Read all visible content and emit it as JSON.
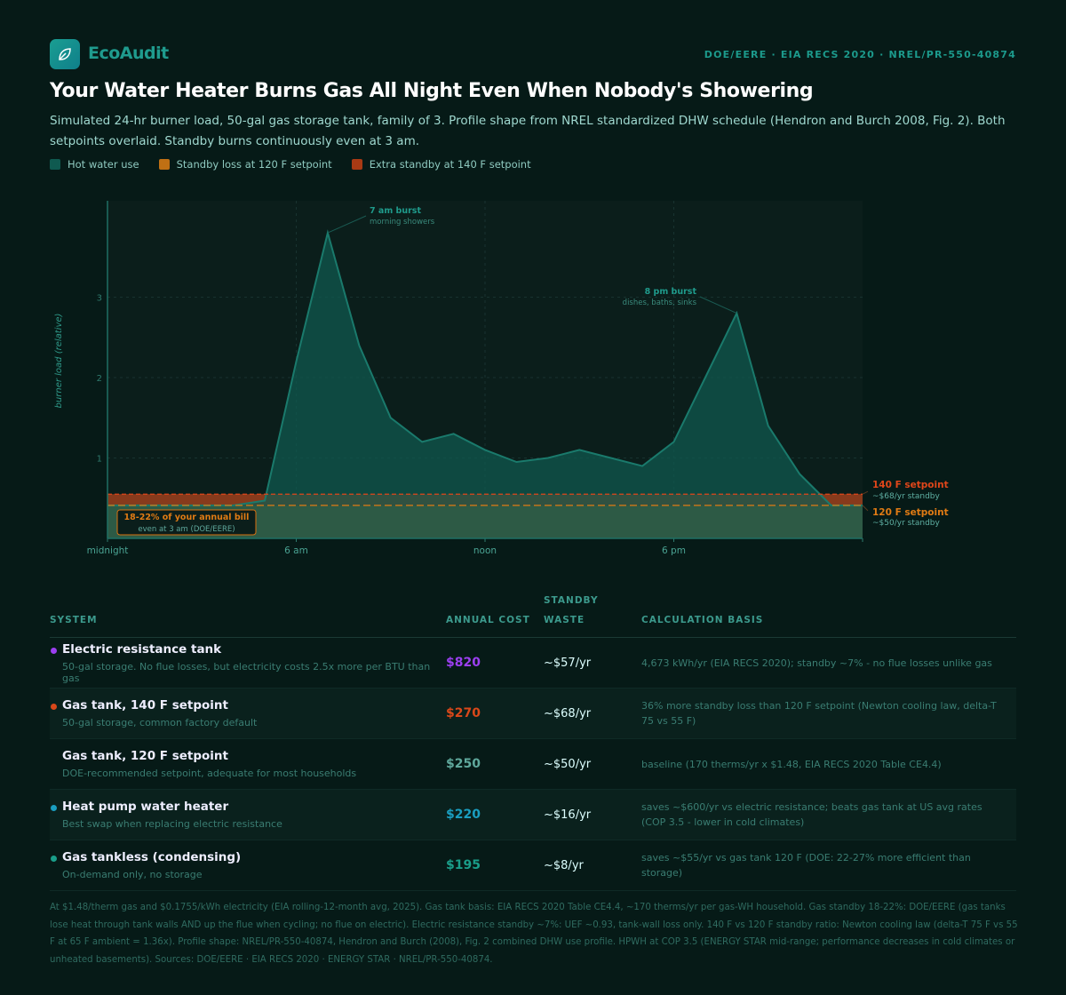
{
  "header": {
    "brand": "EcoAudit",
    "sources": "DOE/EERE · EIA RECS 2020 · NREL/PR-550-40874",
    "title": "Your Water Heater Burns Gas All Night Even When Nobody's Showering",
    "subtitle": "Simulated 24-hr burner load, 50-gal gas storage tank, family of 3. Profile shape from NREL standardized DHW schedule (Hendron and Burch 2008, Fig. 2). Both setpoints overlaid. Standby burns continuously even at 3 am.",
    "logo_icon": "leaf-icon"
  },
  "legend": [
    {
      "label": "Hot water use",
      "color": "#0f5a50"
    },
    {
      "label": "Standby loss at 120 F setpoint",
      "color": "#c07014"
    },
    {
      "label": "Extra standby at 140 F setpoint",
      "color": "#a83a14"
    }
  ],
  "chart_data": {
    "type": "area",
    "ylabel": "burner load (relative)",
    "xlim": [
      0,
      24
    ],
    "ylim": [
      0,
      4.2
    ],
    "xticks": [
      {
        "x": 0,
        "label": "midnight"
      },
      {
        "x": 6,
        "label": "6 am"
      },
      {
        "x": 12,
        "label": "noon"
      },
      {
        "x": 18,
        "label": "6 pm"
      }
    ],
    "yticks": [
      1,
      2,
      3
    ],
    "grid": true,
    "series": [
      {
        "name": "Hot water use",
        "x": [
          0,
          1,
          2,
          3,
          4,
          5,
          6,
          7,
          8,
          9,
          10,
          11,
          12,
          13,
          14,
          15,
          16,
          17,
          18,
          19,
          20,
          21,
          22,
          23,
          24
        ],
        "values": [
          0.41,
          0.41,
          0.41,
          0.41,
          0.41,
          0.47,
          2.2,
          3.8,
          2.4,
          1.5,
          1.2,
          1.3,
          1.1,
          0.95,
          1.0,
          1.1,
          1.0,
          0.9,
          1.2,
          2.0,
          2.8,
          1.4,
          0.8,
          0.41,
          0.41
        ]
      }
    ],
    "setpoints": [
      {
        "name": "120 F setpoint",
        "level": 0.41,
        "note": "~$50/yr standby",
        "color": "#e07b14"
      },
      {
        "name": "140 F setpoint",
        "level": 0.55,
        "note": "~$68/yr standby",
        "color": "#e0461a"
      }
    ],
    "annotations": [
      {
        "x": 7,
        "y": 3.8,
        "title": "7 am burst",
        "sub": "morning showers"
      },
      {
        "x": 20,
        "y": 2.8,
        "title": "8 pm burst",
        "sub": "dishes, baths, sinks"
      }
    ],
    "callout": {
      "title": "18-22% of your annual bill",
      "sub": "even at 3 am (DOE/EERE)"
    }
  },
  "table": {
    "headers": {
      "system": "SYSTEM",
      "cost": "ANNUAL COST",
      "standby": "STANDBY WASTE",
      "basis": "CALCULATION BASIS"
    },
    "rows": [
      {
        "name": "Electric resistance tank",
        "desc": "50-gal storage. No flue losses, but electricity costs 2.5x more per BTU than gas",
        "cost": "$820",
        "standby": "~$57/yr",
        "basis": "4,673 kWh/yr (EIA RECS 2020); standby ~7% - no flue losses unlike gas",
        "color": "#9b3ff0",
        "dot": true
      },
      {
        "name": "Gas tank, 140 F setpoint",
        "desc": "50-gal storage, common factory default",
        "cost": "$270",
        "standby": "~$68/yr",
        "basis": "36% more standby loss than 120 F setpoint (Newton cooling law, delta-T 75 vs 55 F)",
        "color": "#d9481a",
        "dot": true
      },
      {
        "name": "Gas tank, 120 F setpoint",
        "desc": "DOE-recommended setpoint, adequate for most households",
        "cost": "$250",
        "standby": "~$50/yr",
        "basis": "baseline (170 therms/yr x $1.48, EIA RECS 2020 Table CE4.4)",
        "color": "#5fa89c",
        "dot": false
      },
      {
        "name": "Heat pump water heater",
        "desc": "Best swap when replacing electric resistance",
        "cost": "$220",
        "standby": "~$16/yr",
        "basis": "saves ~$600/yr vs electric resistance; beats gas tank at US avg rates (COP 3.5 - lower in cold climates)",
        "color": "#1a9ec0",
        "dot": true
      },
      {
        "name": "Gas tankless (condensing)",
        "desc": "On-demand only, no storage",
        "cost": "$195",
        "standby": "~$8/yr",
        "basis": "saves ~$55/yr vs gas tank 120 F (DOE: 22-27% more efficient than storage)",
        "color": "#1a9e8a",
        "dot": true
      }
    ]
  },
  "footnote": "At $1.48/therm gas and $0.1755/kWh electricity (EIA rolling-12-month avg, 2025). Gas tank basis: EIA RECS 2020 Table CE4.4, ~170 therms/yr per gas-WH household. Gas standby 18-22%: DOE/EERE (gas tanks lose heat through tank walls AND up the flue when cycling; no flue on electric). Electric resistance standby ~7%: UEF ~0.93, tank-wall loss only. 140 F vs 120 F standby ratio: Newton cooling law (delta-T 75 F vs 55 F at 65 F ambient = 1.36x). Profile shape: NREL/PR-550-40874, Hendron and Burch (2008), Fig. 2 combined DHW use profile. HPWH at COP 3.5 (ENERGY STAR mid-range; performance decreases in cold climates or unheated basements). Sources: DOE/EERE · EIA RECS 2020 · ENERGY STAR · NREL/PR-550-40874."
}
